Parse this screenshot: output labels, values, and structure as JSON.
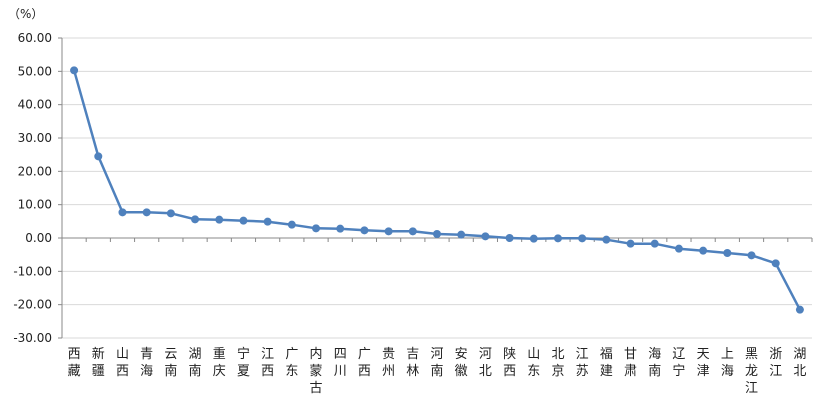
{
  "chart_data": {
    "type": "line",
    "unit_label": "（%）",
    "title": "",
    "xlabel": "",
    "ylabel": "",
    "ylim": [
      -30,
      60
    ],
    "y_ticks": [
      "60.00",
      "50.00",
      "40.00",
      "30.00",
      "20.00",
      "10.00",
      "0.00",
      "-10.00",
      "-20.00",
      "-30.00"
    ],
    "grid": true,
    "legend": "none",
    "series_color": "#4f81bd",
    "categories": [
      "西藏",
      "新疆",
      "山西",
      "青海",
      "云南",
      "湖南",
      "重庆",
      "宁夏",
      "江西",
      "广东",
      "内蒙古",
      "四川",
      "广西",
      "贵州",
      "吉林",
      "河南",
      "安徽",
      "河北",
      "陕西",
      "山东",
      "北京",
      "江苏",
      "福建",
      "甘肃",
      "海南",
      "辽宁",
      "天津",
      "上海",
      "黑龙江",
      "浙江",
      "湖北"
    ],
    "series": [
      {
        "values": [
          50.3,
          24.5,
          7.7,
          7.7,
          7.4,
          5.6,
          5.5,
          5.2,
          4.9,
          4.0,
          2.9,
          2.8,
          2.3,
          2.0,
          2.0,
          1.2,
          1.0,
          0.5,
          0.0,
          -0.2,
          -0.1,
          -0.1,
          -0.5,
          -1.7,
          -1.7,
          -3.2,
          -3.8,
          -4.5,
          -5.2,
          -7.6,
          -21.5
        ]
      }
    ]
  }
}
